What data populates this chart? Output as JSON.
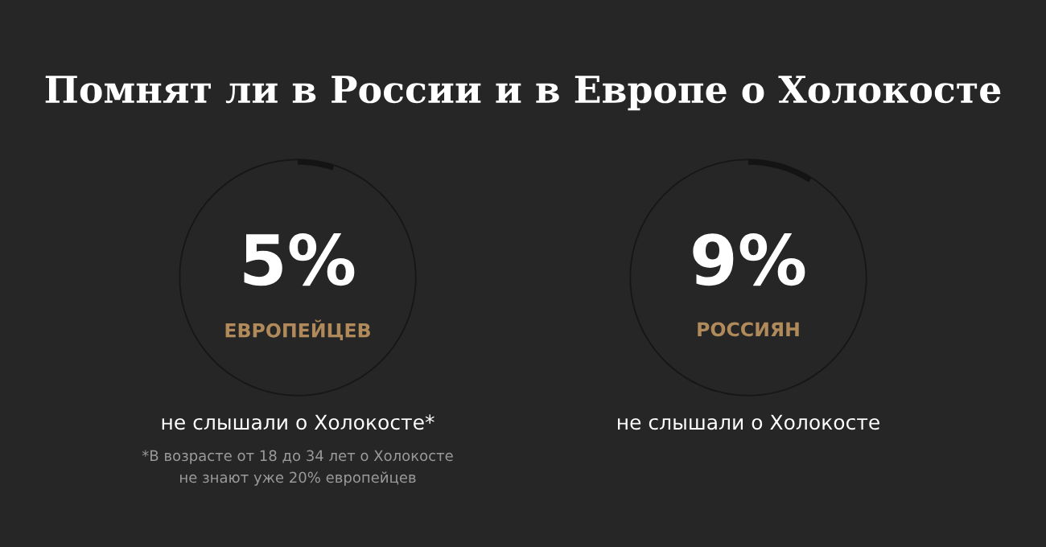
{
  "chart_data": [
    {
      "type": "donut",
      "title": "Помнят ли в России и в Европе о Холокосте",
      "subtitle": "ЕВРОПЕЙЦЕВ",
      "categories": [
        null,
        null
      ],
      "values": [
        5,
        95
      ],
      "colors": [
        "#141414",
        "#161616"
      ],
      "value_labels": [
        "5%",
        null
      ],
      "annotations": [
        "не слышали о Холокосте*",
        "*В возрасте от 18 до 34 лет о Холокосте",
        "не знают уже 20% европейцев"
      ]
    },
    {
      "type": "donut",
      "subtitle": "РОССИЯН",
      "categories": [
        null,
        null
      ],
      "values": [
        9,
        91
      ],
      "colors": [
        "#141414",
        "#161616"
      ],
      "value_labels": [
        "9%",
        null
      ],
      "annotations": [
        "не слышали о Холокосте"
      ]
    }
  ]
}
